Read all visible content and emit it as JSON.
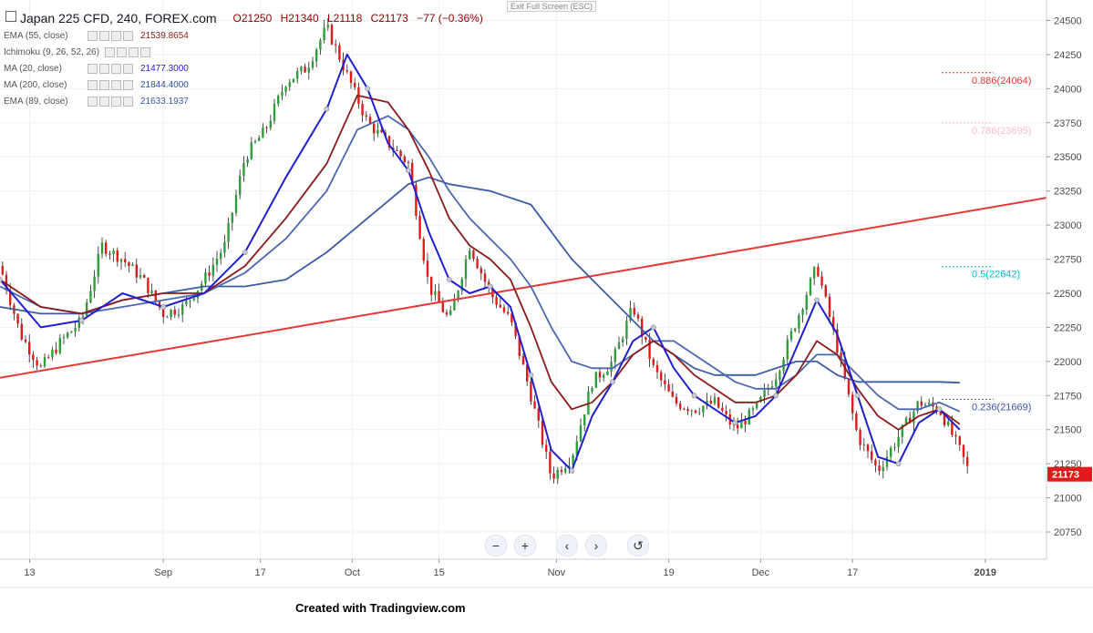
{
  "header": {
    "symbol": "Japan 225 CFD, 240, FOREX.com",
    "open": "O21250",
    "high": "H21340",
    "low": "L21118",
    "close": "C21173",
    "change": "−77 (−0.36%)",
    "exit_fullscreen": "Exit Full Screen (ESC)"
  },
  "indicators": [
    {
      "name": "EMA (55, close)",
      "value": "21539.8654",
      "color": "#8b1a1a"
    },
    {
      "name": "Ichimoku (9, 26, 52, 26)",
      "value": "",
      "color": "#1e90ff"
    },
    {
      "name": "MA (20, close)",
      "value": "21477.3000",
      "color": "#1f1fd0"
    },
    {
      "name": "MA (200, close)",
      "value": "21844.4000",
      "color": "#2a4fa0"
    },
    {
      "name": "EMA (89, close)",
      "value": "21633.1937",
      "color": "#3a5aa8"
    }
  ],
  "chart_data": {
    "type": "candlestick",
    "ylim": [
      20550,
      24650
    ],
    "y_ticks": [
      "24500",
      "24250",
      "24000",
      "23750",
      "23500",
      "23250",
      "23000",
      "22750",
      "22500",
      "22250",
      "22000",
      "21750",
      "21500",
      "21250",
      "21000",
      "20750"
    ],
    "x_labels": [
      "13",
      "Sep",
      "17",
      "Oct",
      "15",
      "Nov",
      "19",
      "Dec",
      "17",
      "2019"
    ],
    "last_price": "21173",
    "price_series": {
      "t": [
        0,
        4,
        8,
        12,
        16,
        20,
        24,
        28,
        32,
        36,
        40,
        44,
        48,
        52,
        56,
        60,
        64,
        68,
        72,
        76,
        80,
        84,
        88,
        92,
        96,
        100,
        104,
        108,
        112,
        116,
        120,
        124,
        128,
        132,
        136,
        140,
        144,
        148,
        152,
        156,
        160,
        164,
        168,
        172,
        176,
        180,
        184,
        188,
        190
      ],
      "v": [
        22700,
        22200,
        21950,
        22150,
        22300,
        22850,
        22750,
        22600,
        22350,
        22400,
        22600,
        22850,
        23500,
        23700,
        24050,
        24150,
        24450,
        24100,
        23750,
        23600,
        23450,
        22550,
        22300,
        22850,
        22500,
        22300,
        21750,
        21150,
        21300,
        21850,
        22000,
        22400,
        21950,
        21700,
        21650,
        21700,
        21500,
        21650,
        21900,
        22300,
        22700,
        22100,
        21450,
        21200,
        21450,
        21700,
        21650,
        21350,
        21173
      ]
    },
    "ma20": [
      [
        0,
        22600
      ],
      [
        8,
        22250
      ],
      [
        16,
        22300
      ],
      [
        24,
        22500
      ],
      [
        32,
        22400
      ],
      [
        40,
        22500
      ],
      [
        48,
        22800
      ],
      [
        56,
        23350
      ],
      [
        64,
        23850
      ],
      [
        68,
        24250
      ],
      [
        72,
        24000
      ],
      [
        76,
        23600
      ],
      [
        80,
        23400
      ],
      [
        84,
        22950
      ],
      [
        88,
        22600
      ],
      [
        92,
        22500
      ],
      [
        96,
        22550
      ],
      [
        100,
        22400
      ],
      [
        104,
        21900
      ],
      [
        108,
        21350
      ],
      [
        112,
        21200
      ],
      [
        116,
        21600
      ],
      [
        120,
        21850
      ],
      [
        124,
        22150
      ],
      [
        128,
        22250
      ],
      [
        132,
        21950
      ],
      [
        136,
        21750
      ],
      [
        140,
        21650
      ],
      [
        144,
        21550
      ],
      [
        148,
        21600
      ],
      [
        152,
        21750
      ],
      [
        156,
        22100
      ],
      [
        160,
        22450
      ],
      [
        164,
        22200
      ],
      [
        168,
        21750
      ],
      [
        172,
        21300
      ],
      [
        176,
        21250
      ],
      [
        180,
        21550
      ],
      [
        184,
        21650
      ],
      [
        188,
        21500
      ]
    ],
    "ema55": [
      [
        0,
        22600
      ],
      [
        8,
        22400
      ],
      [
        16,
        22350
      ],
      [
        24,
        22450
      ],
      [
        32,
        22500
      ],
      [
        40,
        22500
      ],
      [
        48,
        22700
      ],
      [
        56,
        23050
      ],
      [
        64,
        23450
      ],
      [
        70,
        23950
      ],
      [
        76,
        23900
      ],
      [
        80,
        23700
      ],
      [
        84,
        23400
      ],
      [
        88,
        23050
      ],
      [
        92,
        22850
      ],
      [
        96,
        22750
      ],
      [
        100,
        22600
      ],
      [
        104,
        22250
      ],
      [
        108,
        21850
      ],
      [
        112,
        21650
      ],
      [
        116,
        21700
      ],
      [
        120,
        21850
      ],
      [
        124,
        22050
      ],
      [
        128,
        22150
      ],
      [
        132,
        22050
      ],
      [
        136,
        21900
      ],
      [
        140,
        21800
      ],
      [
        144,
        21700
      ],
      [
        148,
        21700
      ],
      [
        152,
        21750
      ],
      [
        156,
        21900
      ],
      [
        160,
        22150
      ],
      [
        164,
        22050
      ],
      [
        168,
        21800
      ],
      [
        172,
        21600
      ],
      [
        176,
        21500
      ],
      [
        180,
        21600
      ],
      [
        184,
        21650
      ],
      [
        188,
        21540
      ]
    ],
    "ema89": [
      [
        0,
        22550
      ],
      [
        8,
        22400
      ],
      [
        16,
        22350
      ],
      [
        24,
        22400
      ],
      [
        32,
        22450
      ],
      [
        40,
        22500
      ],
      [
        48,
        22650
      ],
      [
        56,
        22900
      ],
      [
        64,
        23250
      ],
      [
        70,
        23700
      ],
      [
        76,
        23800
      ],
      [
        80,
        23700
      ],
      [
        84,
        23500
      ],
      [
        88,
        23250
      ],
      [
        92,
        23050
      ],
      [
        96,
        22900
      ],
      [
        100,
        22750
      ],
      [
        104,
        22550
      ],
      [
        108,
        22250
      ],
      [
        112,
        22000
      ],
      [
        116,
        21950
      ],
      [
        120,
        21950
      ],
      [
        124,
        22050
      ],
      [
        128,
        22150
      ],
      [
        132,
        22150
      ],
      [
        136,
        22050
      ],
      [
        140,
        21950
      ],
      [
        144,
        21850
      ],
      [
        148,
        21800
      ],
      [
        152,
        21800
      ],
      [
        156,
        21900
      ],
      [
        160,
        22050
      ],
      [
        164,
        22050
      ],
      [
        168,
        21900
      ],
      [
        172,
        21750
      ],
      [
        176,
        21650
      ],
      [
        180,
        21650
      ],
      [
        184,
        21700
      ],
      [
        188,
        21633
      ]
    ],
    "ma200": [
      [
        0,
        22400
      ],
      [
        8,
        22350
      ],
      [
        16,
        22350
      ],
      [
        24,
        22450
      ],
      [
        32,
        22500
      ],
      [
        40,
        22550
      ],
      [
        48,
        22550
      ],
      [
        56,
        22600
      ],
      [
        64,
        22800
      ],
      [
        72,
        23050
      ],
      [
        80,
        23300
      ],
      [
        84,
        23350
      ],
      [
        88,
        23300
      ],
      [
        96,
        23250
      ],
      [
        104,
        23150
      ],
      [
        108,
        22950
      ],
      [
        112,
        22750
      ],
      [
        116,
        22600
      ],
      [
        120,
        22450
      ],
      [
        124,
        22300
      ],
      [
        128,
        22150
      ],
      [
        132,
        22050
      ],
      [
        136,
        21950
      ],
      [
        140,
        21900
      ],
      [
        144,
        21900
      ],
      [
        148,
        21900
      ],
      [
        152,
        21950
      ],
      [
        156,
        22000
      ],
      [
        160,
        22000
      ],
      [
        164,
        21900
      ],
      [
        168,
        21850
      ],
      [
        172,
        21850
      ],
      [
        176,
        21850
      ],
      [
        180,
        21850
      ],
      [
        184,
        21850
      ],
      [
        188,
        21844
      ]
    ],
    "trendline": [
      [
        0,
        21880
      ],
      [
        205,
        23200
      ]
    ],
    "fib_levels": [
      {
        "label": "0.886(24064)",
        "value": 24064,
        "color": "#e53935"
      },
      {
        "label": "0.786(23695)",
        "value": 23695,
        "color": "#f8bbd0"
      },
      {
        "label": "0.5(22642)",
        "value": 22642,
        "color": "#00bcd4"
      },
      {
        "label": "0.236(21669)",
        "value": 21669,
        "color": "#3f51b5"
      }
    ]
  },
  "nav": {
    "zoom_out": "−",
    "zoom_in": "+",
    "prev": "‹",
    "next": "›",
    "reset": "↺"
  },
  "footer": {
    "credit": "Created with Tradingview.com"
  }
}
